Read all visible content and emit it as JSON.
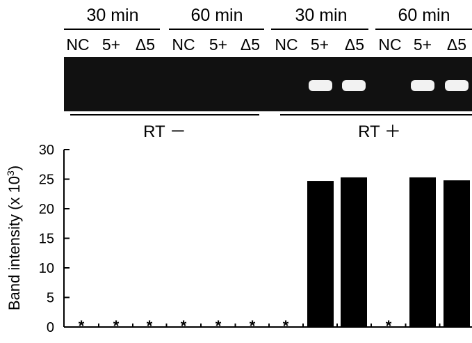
{
  "time_groups": [
    {
      "label": "30 min",
      "lanes": [
        "NC",
        "5+",
        "Δ5"
      ]
    },
    {
      "label": "60 min",
      "lanes": [
        "NC",
        "5+",
        "Δ5"
      ]
    },
    {
      "label": "30 min",
      "lanes": [
        "NC",
        "5+",
        "Δ5"
      ]
    },
    {
      "label": "60 min",
      "lanes": [
        "NC",
        "5+",
        "Δ5"
      ]
    }
  ],
  "rt_groups": [
    {
      "label": "RT －"
    },
    {
      "label": "RT ＋"
    }
  ],
  "gel": {
    "background": "#111111",
    "band_color": "#ffffff",
    "bands_present": [
      false,
      false,
      false,
      false,
      false,
      false,
      false,
      true,
      true,
      false,
      true,
      true
    ]
  },
  "chart_data": {
    "type": "bar",
    "categories": [
      "NC",
      "5+",
      "Δ5",
      "NC",
      "5+",
      "Δ5",
      "NC",
      "5+",
      "Δ5",
      "NC",
      "5+",
      "Δ5"
    ],
    "values": [
      0,
      0,
      0,
      0,
      0,
      0,
      0,
      24.7,
      25.3,
      0,
      25.3,
      24.8
    ],
    "markers": [
      "*",
      "*",
      "*",
      "*",
      "*",
      "*",
      "*",
      "",
      "",
      "*",
      "",
      ""
    ],
    "ylabel": "Band  intensity (x 10",
    "ylabel_sup": "3",
    "ylabel_close": ")",
    "ylim": [
      0,
      30
    ],
    "yticks": [
      0,
      5,
      10,
      15,
      20,
      25,
      30
    ],
    "bar_color": "#000000",
    "grid": false
  }
}
